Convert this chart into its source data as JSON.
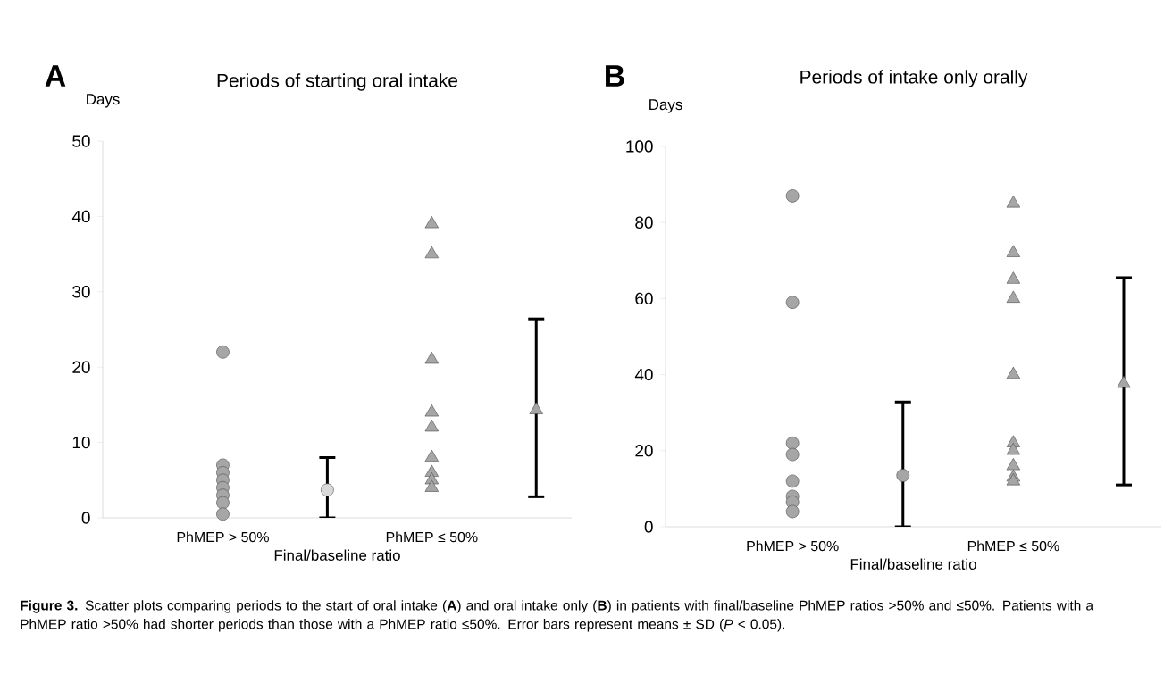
{
  "chart_data": [
    {
      "type": "scatter",
      "title": "Periods of starting oral intake",
      "ylabel": "Days",
      "xlabel": "Final/baseline ratio",
      "categories": [
        "PhMEP > 50%",
        null,
        "PhMEP ≤ 50%",
        null
      ],
      "ylim": [
        0,
        50
      ],
      "yticks": [
        0,
        10,
        20,
        30,
        40,
        50
      ],
      "annotations": [
        "A",
        "**Figure 3.** Scatter plots comparing periods to the start of oral intake (**A**) and oral intake only (**B**) in patients with final/baseline PhMEP ratios >50% and ≤50%. Patients with a PhMEP ratio >50% had shorter periods than those with a PhMEP ratio ≤50%. Error bars represent means ± SD (*P* < 0.05)."
      ],
      "series": [
        {
          "color": "#a6a6a6",
          "marker": "circle",
          "x": [
            "PhMEP > 50%",
            "PhMEP > 50%",
            "PhMEP > 50%",
            "PhMEP > 50%",
            "PhMEP > 50%",
            "PhMEP > 50%",
            "PhMEP > 50%",
            "PhMEP > 50%",
            "PhMEP > 50%"
          ],
          "values": [
            22,
            7,
            6,
            5,
            4,
            3,
            2,
            null,
            0.5
          ]
        },
        {
          "color": "#a6a6a6",
          "marker": "triangle",
          "x": [
            "PhMEP ≤ 50%",
            "PhMEP ≤ 50%",
            "PhMEP ≤ 50%",
            "PhMEP ≤ 50%",
            "PhMEP ≤ 50%",
            "PhMEP ≤ 50%",
            "PhMEP ≤ 50%",
            "PhMEP ≤ 50%",
            "PhMEP ≤ 50%"
          ],
          "values": [
            39,
            35,
            21,
            14,
            12,
            8,
            6,
            5,
            4
          ]
        },
        {
          "color": "#d9d9d9",
          "marker": "circle",
          "values": [
            null,
            3.7,
            null,
            null
          ],
          "errors": [
            null,
            [
              0,
              8
            ],
            null,
            null
          ]
        },
        {
          "color": "#a6a6a6",
          "marker": "triangle",
          "values": [
            null,
            null,
            null,
            14.3
          ],
          "errors": [
            null,
            null,
            null,
            [
              2.8,
              26.4
            ]
          ]
        }
      ]
    },
    {
      "type": "scatter",
      "title": "Periods of intake only orally",
      "ylabel": "Days",
      "xlabel": "Final/baseline ratio",
      "categories": [
        "PhMEP > 50%",
        null,
        "PhMEP ≤ 50%",
        null
      ],
      "ylim": [
        0,
        100
      ],
      "yticks": [
        0,
        20,
        40,
        60,
        80,
        100
      ],
      "annotations": [
        "B"
      ],
      "series": [
        {
          "color": "#a6a6a6",
          "marker": "circle",
          "x": [
            "PhMEP > 50%",
            "PhMEP > 50%",
            "PhMEP > 50%",
            "PhMEP > 50%",
            "PhMEP > 50%",
            "PhMEP > 50%",
            "PhMEP > 50%",
            "PhMEP > 50%",
            "PhMEP > 50%",
            "PhMEP > 50%"
          ],
          "values": [
            87,
            59,
            22,
            19,
            12,
            null,
            8,
            6.5,
            null,
            4
          ]
        },
        {
          "color": "#a6a6a6",
          "marker": "triangle",
          "x": [
            "PhMEP ≤ 50%",
            "PhMEP ≤ 50%",
            "PhMEP ≤ 50%",
            "PhMEP ≤ 50%",
            "PhMEP ≤ 50%",
            "PhMEP ≤ 50%",
            "PhMEP ≤ 50%",
            "PhMEP ≤ 50%",
            "PhMEP ≤ 50%",
            "PhMEP ≤ 50%"
          ],
          "values": [
            85,
            72,
            65,
            60,
            40,
            22,
            20,
            16,
            13,
            12
          ]
        },
        {
          "color": "#a6a6a6",
          "marker": "circle",
          "values": [
            null,
            13.5,
            null,
            null
          ],
          "errors": [
            null,
            [
              0,
              32.8
            ],
            null,
            null
          ]
        },
        {
          "color": "#a6a6a6",
          "marker": "triangle",
          "values": [
            null,
            null,
            null,
            37.6
          ],
          "errors": [
            null,
            null,
            null,
            [
              11,
              65.5
            ]
          ]
        }
      ]
    }
  ]
}
